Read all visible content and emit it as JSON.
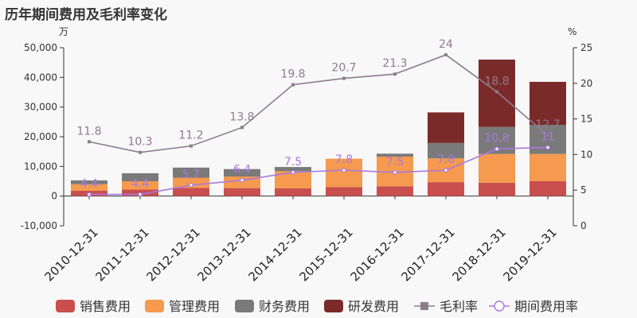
{
  "chart_data": {
    "type": "bar",
    "title": "历年期间费用及毛利率变化",
    "left_unit": "万",
    "right_unit": "%",
    "categories": [
      "2010-12-31",
      "2011-12-31",
      "2012-12-31",
      "2013-12-31",
      "2014-12-31",
      "2015-12-31",
      "2016-12-31",
      "2017-12-31",
      "2018-12-31",
      "2019-12-31"
    ],
    "y_left": {
      "min": -10000,
      "max": 50000,
      "ticks": [
        "-10,000",
        "0",
        "10,000",
        "20,000",
        "30,000",
        "40,000",
        "50,000"
      ]
    },
    "y_right": {
      "min": 0,
      "max": 25,
      "ticks": [
        "0",
        "5",
        "10",
        "15",
        "20",
        "25"
      ]
    },
    "stacked_series": [
      {
        "name": "销售费用",
        "color": "#c94f4f",
        "values": [
          1800,
          2200,
          2800,
          2700,
          2600,
          3000,
          3300,
          4700,
          4500,
          5000
        ]
      },
      {
        "name": "管理费用",
        "color": "#f59a4e",
        "values": [
          2200,
          2800,
          3400,
          3900,
          5800,
          9600,
          10000,
          8000,
          9700,
          9200
        ]
      },
      {
        "name": "财务费用",
        "color": "#7a7a7a",
        "values": [
          1300,
          2700,
          3400,
          2500,
          1400,
          0,
          1000,
          5200,
          9100,
          9800
        ]
      },
      {
        "name": "研发费用",
        "color": "#7b2a2a",
        "values": [
          0,
          0,
          0,
          0,
          0,
          0,
          0,
          10300,
          22700,
          14500
        ]
      }
    ],
    "line_series": [
      {
        "name": "毛利率",
        "color": "#8c7d8c",
        "values": [
          11.8,
          10.3,
          11.2,
          13.8,
          19.8,
          20.7,
          21.3,
          24,
          18.8,
          12.7
        ]
      },
      {
        "name": "期间费用率",
        "color": "#a878e0",
        "values": [
          4.4,
          4.4,
          5.7,
          6.4,
          7.5,
          7.8,
          7.5,
          7.8,
          10.8,
          11
        ]
      }
    ],
    "legend_position": "bottom"
  }
}
